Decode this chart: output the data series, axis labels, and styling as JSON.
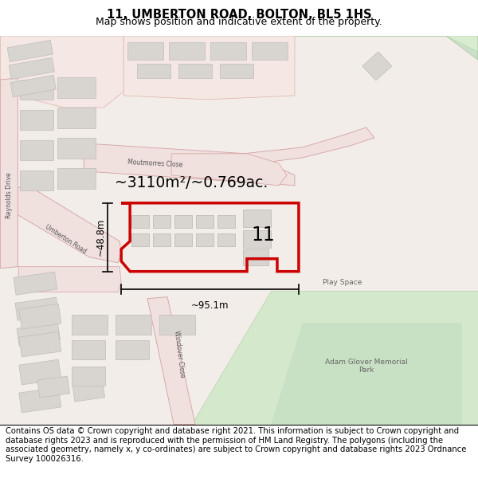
{
  "title": "11, UMBERTON ROAD, BOLTON, BL5 1HS",
  "subtitle": "Map shows position and indicative extent of the property.",
  "footer": "Contains OS data © Crown copyright and database right 2021. This information is subject to Crown copyright and database rights 2023 and is reproduced with the permission of HM Land Registry. The polygons (including the associated geometry, namely x, y co-ordinates) are subject to Crown copyright and database rights 2023 Ordnance Survey 100026316.",
  "area_text": "~3110m²/~0.769ac.",
  "width_text": "~95.1m",
  "height_text": "~48.8m",
  "number_text": "11",
  "property_color": "#cc0000",
  "title_fontsize": 10.5,
  "subtitle_fontsize": 9,
  "footer_fontsize": 7.2,
  "map_bg": "#f2ede8",
  "road_fill": "#f0e0de",
  "road_edge": "#d4a0a0",
  "building_fill": "#d8d4d0",
  "building_edge": "#c0bcb8",
  "green_fill": "#ccdfc8",
  "green_edge": "#b0c8a8",
  "pink_fill": "#f5e8e4",
  "pink_edge": "#e0b0a8"
}
